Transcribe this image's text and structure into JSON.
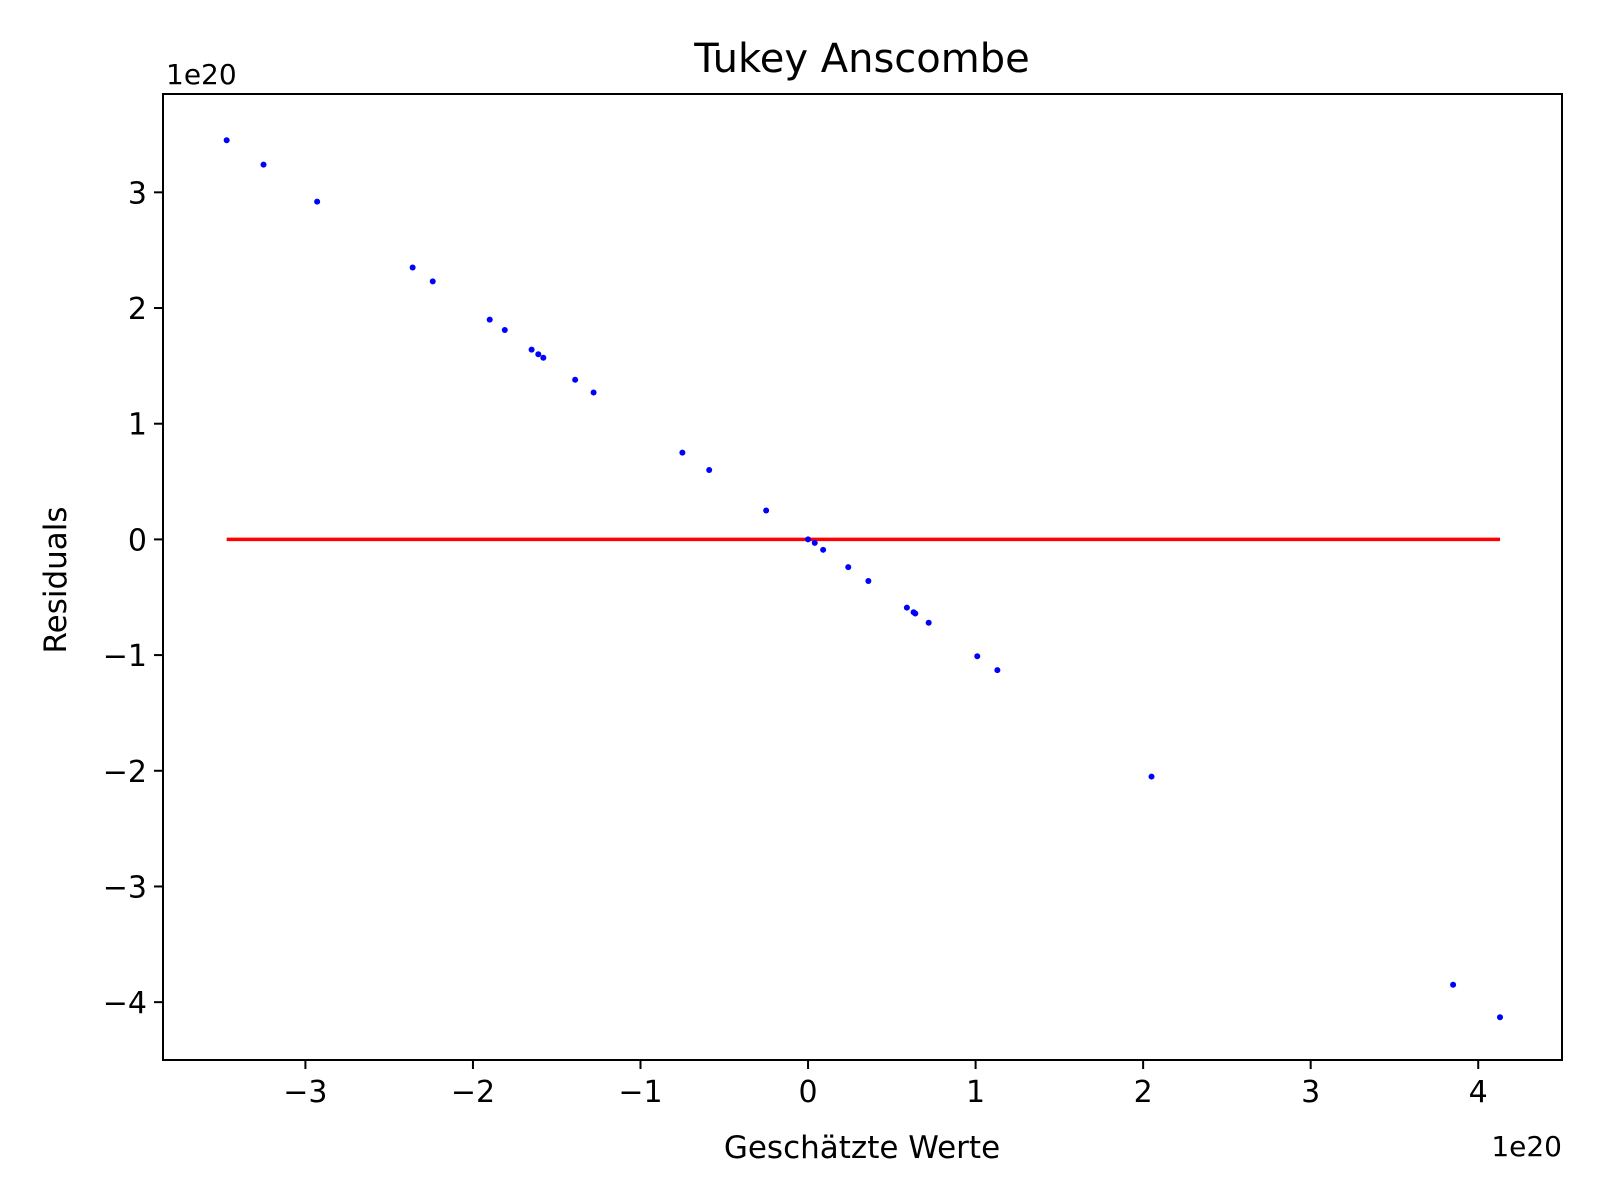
{
  "chart_data": {
    "type": "scatter",
    "title": "Tukey Anscombe",
    "xlabel": "Geschätzte Werte",
    "ylabel": "Residuals",
    "x_offset_text": "1e20",
    "y_offset_text": "1e20",
    "xlim": [
      -3.85,
      4.5
    ],
    "ylim": [
      -4.5,
      3.85
    ],
    "x_ticks": [
      -3,
      -2,
      -1,
      0,
      1,
      2,
      3,
      4
    ],
    "x_tick_labels": [
      "−3",
      "−2",
      "−1",
      "0",
      "1",
      "2",
      "3",
      "4"
    ],
    "y_ticks": [
      -4,
      -3,
      -2,
      -1,
      0,
      1,
      2,
      3
    ],
    "y_tick_labels": [
      "−4",
      "−3",
      "−2",
      "−1",
      "0",
      "1",
      "2",
      "3"
    ],
    "grid": false,
    "point_color": "#0000ff",
    "line_color": "#ff0000",
    "series": [
      {
        "kind": "points",
        "x": [
          -3.47,
          -3.25,
          -2.93,
          -2.36,
          -2.24,
          -1.9,
          -1.81,
          -1.65,
          -1.61,
          -1.58,
          -1.39,
          -1.28,
          -0.75,
          -0.59,
          -0.25,
          0.0,
          0.04,
          0.09,
          0.24,
          0.36,
          0.59,
          0.63,
          0.64,
          0.72,
          1.01,
          1.13,
          2.05,
          3.85,
          4.13
        ],
        "y": [
          3.45,
          3.24,
          2.92,
          2.35,
          2.23,
          1.9,
          1.81,
          1.64,
          1.6,
          1.57,
          1.38,
          1.27,
          0.75,
          0.6,
          0.25,
          0.0,
          -0.03,
          -0.09,
          -0.24,
          -0.36,
          -0.59,
          -0.63,
          -0.64,
          -0.72,
          -1.01,
          -1.13,
          -2.05,
          -3.85,
          -4.13
        ]
      },
      {
        "kind": "line",
        "x": [
          -3.47,
          4.13
        ],
        "y": [
          0,
          0
        ]
      }
    ]
  }
}
